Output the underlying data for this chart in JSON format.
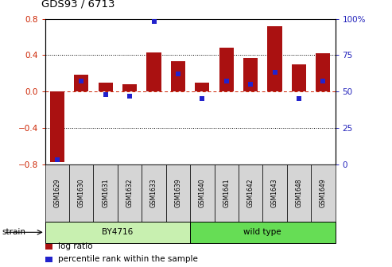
{
  "title": "GDS93 / 6713",
  "samples": [
    "GSM1629",
    "GSM1630",
    "GSM1631",
    "GSM1632",
    "GSM1633",
    "GSM1639",
    "GSM1640",
    "GSM1641",
    "GSM1642",
    "GSM1643",
    "GSM1648",
    "GSM1649"
  ],
  "log_ratio": [
    -0.78,
    0.18,
    0.1,
    0.08,
    0.43,
    0.33,
    0.1,
    0.48,
    0.37,
    0.72,
    0.3,
    0.42
  ],
  "percentile": [
    3,
    57,
    48,
    47,
    98,
    62,
    45,
    57,
    55,
    63,
    45,
    57
  ],
  "bar_color": "#aa1111",
  "dot_color": "#2222cc",
  "strain_groups": [
    {
      "label": "BY4716",
      "start": 0,
      "end": 6,
      "color": "#c8f0b0"
    },
    {
      "label": "wild type",
      "start": 6,
      "end": 12,
      "color": "#66dd55"
    }
  ],
  "ylim_left": [
    -0.8,
    0.8
  ],
  "ylim_right": [
    0,
    100
  ],
  "yticks_left": [
    -0.8,
    -0.4,
    0.0,
    0.4,
    0.8
  ],
  "yticks_right": [
    0,
    25,
    50,
    75,
    100
  ],
  "left_tick_color": "#cc2200",
  "right_tick_color": "#2222bb",
  "hlines_dotted": [
    -0.4,
    0.4
  ],
  "hline_zero_color": "#cc2200",
  "legend_items": [
    "log ratio",
    "percentile rank within the sample"
  ]
}
